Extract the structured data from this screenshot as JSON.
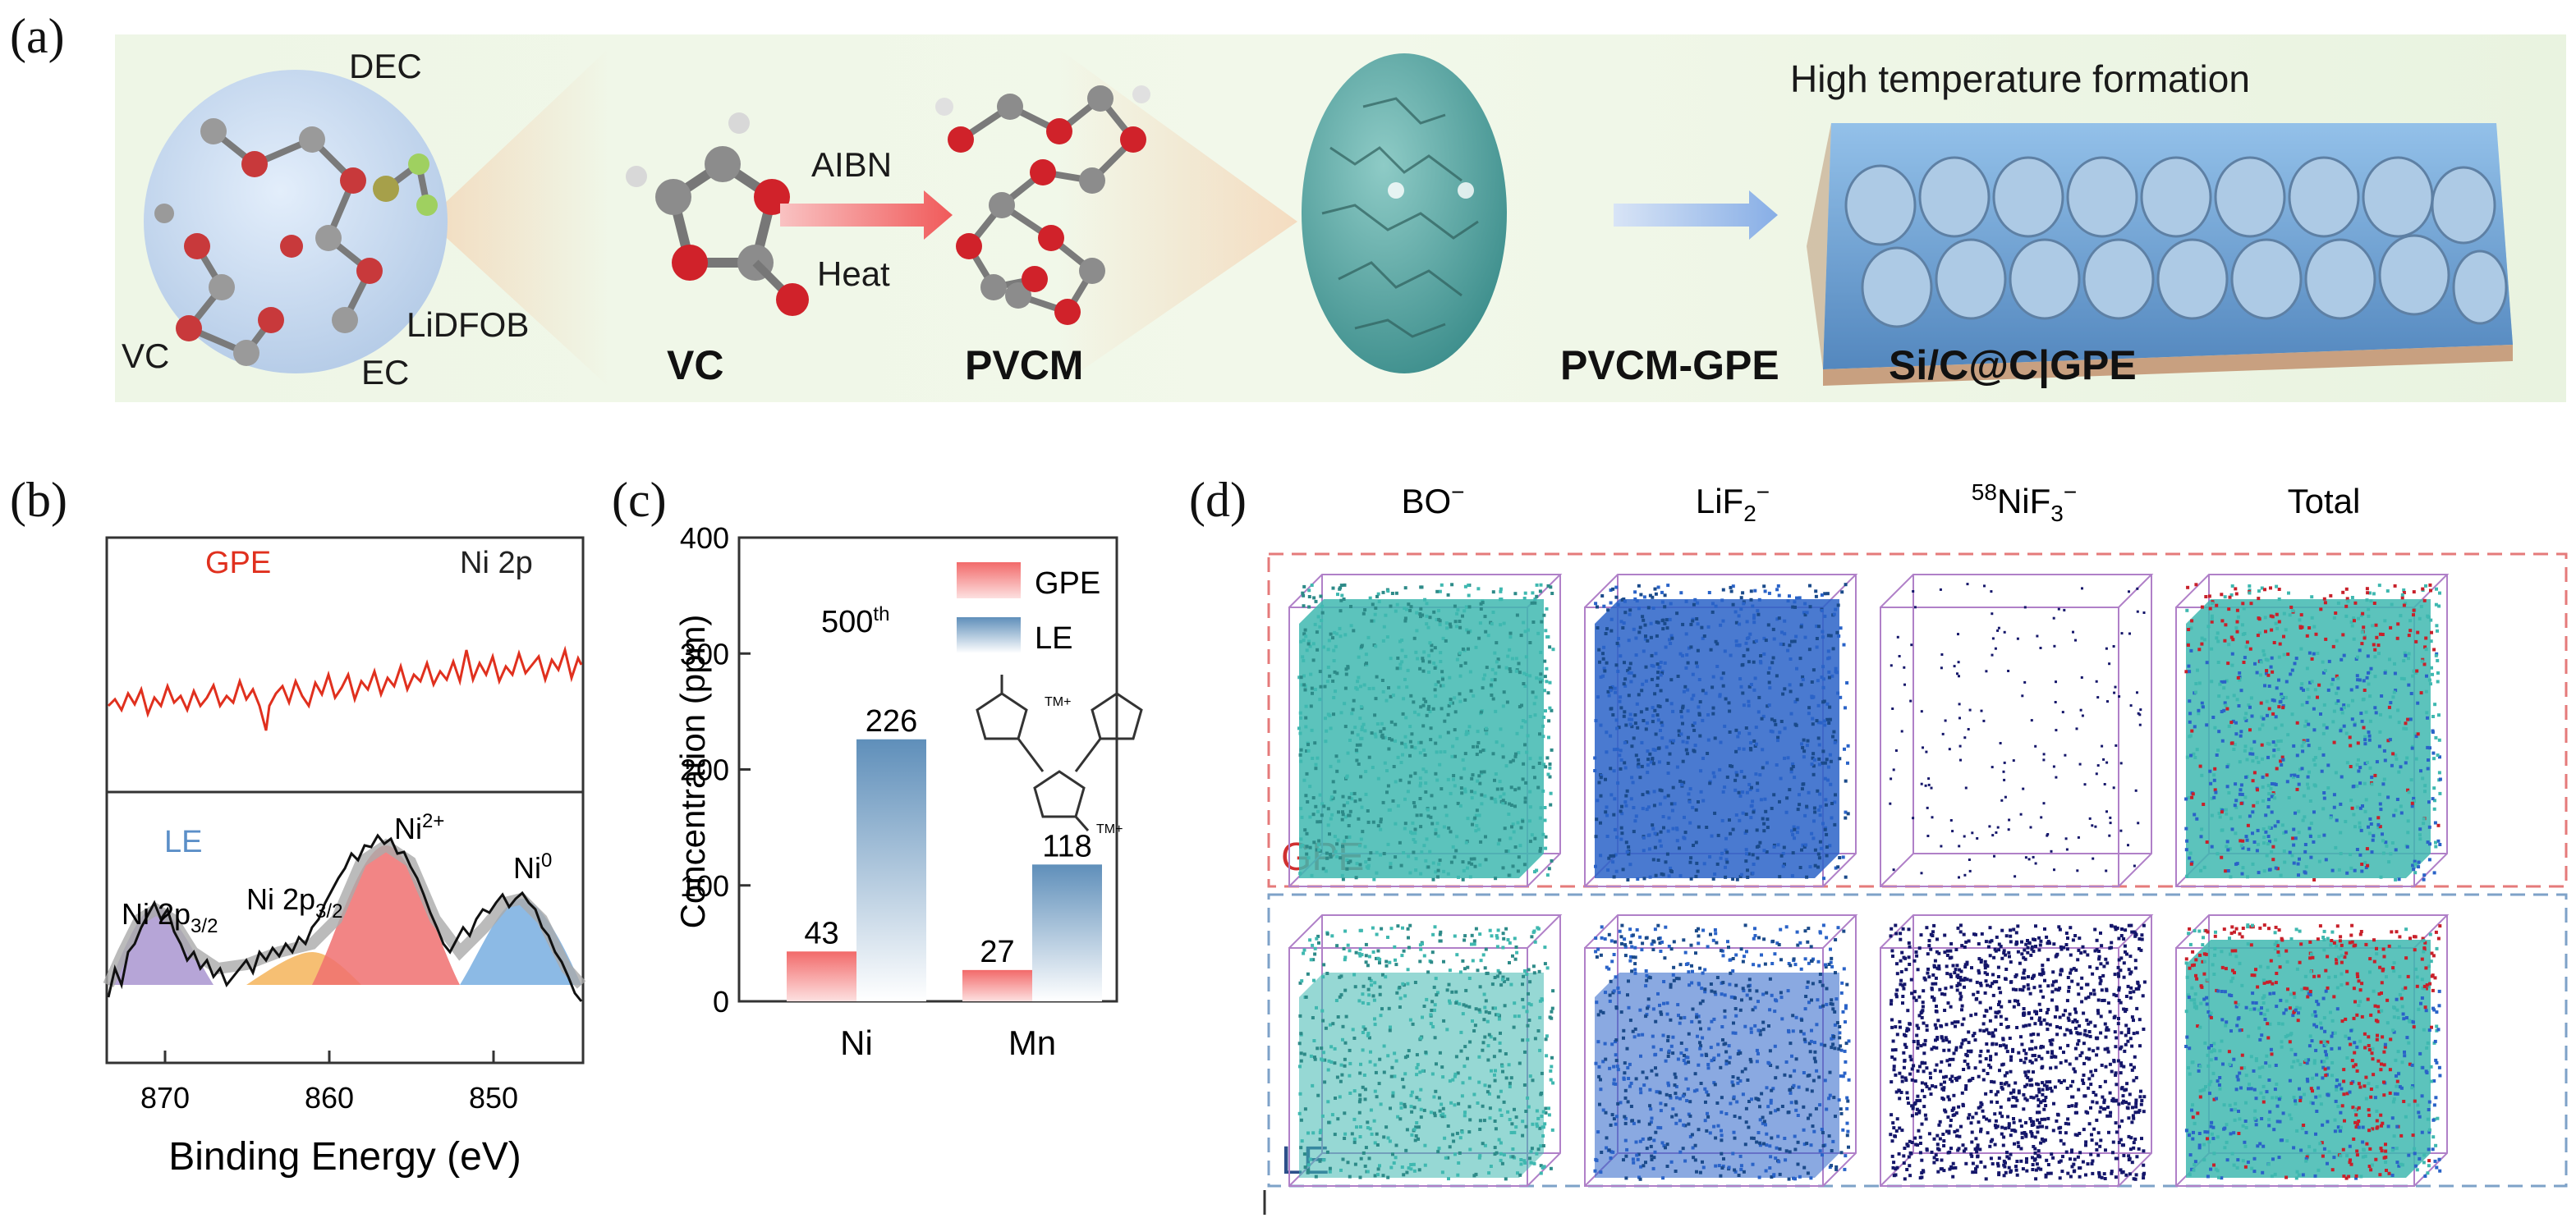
{
  "panel_a": {
    "letter": "(a)",
    "labels": {
      "dec": "DEC",
      "lidfob": "LiDFOB",
      "vc_left": "VC",
      "ec": "EC",
      "vc": "VC",
      "aibn": "AIBN",
      "heat": "Heat",
      "pvcm": "PVCM",
      "pvcm_gpe": "PVCM-GPE",
      "si_gpe": "Si/C@C|GPE",
      "high_temp": "High temperature formation"
    }
  },
  "panel_b": {
    "letter": "(b)",
    "top_label": "GPE",
    "top_right_label": "Ni 2p",
    "bottom_label": "LE",
    "peak_labels": {
      "ni2p_a": "Ni 2p",
      "ni2p_a_sub": "3/2",
      "ni2p_b": "Ni 2p",
      "ni2p_b_sub": "3/2",
      "ni2plus": "Ni",
      "ni2plus_sup": "2+",
      "ni0": "Ni",
      "ni0_sup": "0"
    },
    "x_ticks": [
      "870",
      "860",
      "850"
    ],
    "xlabel": "Binding Energy (eV)"
  },
  "chart_data": {
    "type": "bar",
    "categories": [
      "Ni",
      "Mn"
    ],
    "series": [
      {
        "name": "GPE",
        "values": [
          43,
          27
        ]
      },
      {
        "name": "LE",
        "values": [
          226,
          118
        ]
      }
    ],
    "ylabel": "Concentration (ppm)",
    "ylim": [
      0,
      400
    ],
    "y_ticks": [
      "0",
      "100",
      "200",
      "300",
      "400"
    ],
    "annotation": "500",
    "annotation_sup": "th",
    "struct_label": "TM+",
    "colors": {
      "GPE": "#f26a6a",
      "LE": "#5f8fba"
    }
  },
  "panel_c": {
    "letter": "(c)"
  },
  "panel_d": {
    "letter": "(d)",
    "columns": [
      {
        "main": "BO",
        "sub": "",
        "sup": "−",
        "pre": ""
      },
      {
        "main": "LiF",
        "sub": "2",
        "sup": "−",
        "pre": ""
      },
      {
        "main": "NiF",
        "sub": "3",
        "sup": "−",
        "pre": "58"
      },
      {
        "main": "Total",
        "sub": "",
        "sup": "",
        "pre": ""
      }
    ],
    "row_labels": [
      "GPE",
      "LE"
    ],
    "colors": {
      "gpe_box": "#e57a7a",
      "le_box": "#7ea2c8",
      "teal": "#3fb8b0",
      "blue": "#2a63c8",
      "navy": "#14166a",
      "red": "#c8202a"
    }
  }
}
